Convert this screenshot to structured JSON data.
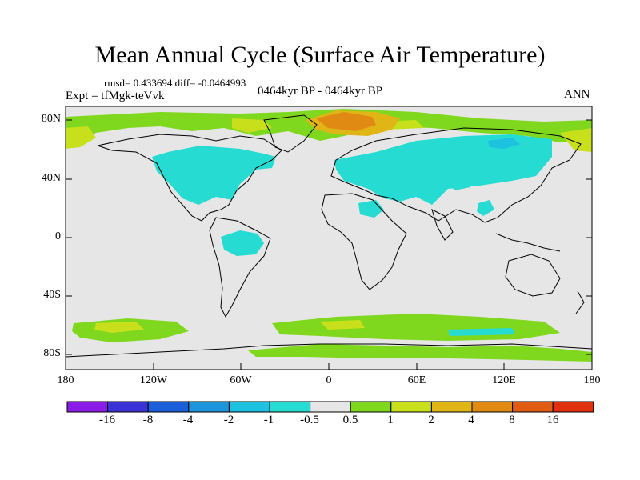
{
  "title": "Mean Annual Cycle (Surface Air Temperature)",
  "stats": "rmsd= 0.433694 diff= -0.0464993",
  "experiment": "Expt = tfMgk-teVvk",
  "period": "0464kyr BP - 0464kyr BP",
  "season": "ANN",
  "lat_ticks": [
    "80N",
    "40N",
    "0",
    "40S",
    "80S"
  ],
  "lon_ticks": [
    "180",
    "120W",
    "60W",
    "0",
    "60E",
    "120E",
    "180"
  ],
  "colorbar": {
    "labels": [
      "-16",
      "-8",
      "-4",
      "-2",
      "-1",
      "-0.5",
      "0.5",
      "1",
      "2",
      "4",
      "8",
      "16"
    ],
    "colors": [
      "#8a1ce8",
      "#3b32d6",
      "#1a5fd8",
      "#1e94dc",
      "#1cc2e0",
      "#26dcd2",
      "#e6e6e6",
      "#7fd81e",
      "#c8e01c",
      "#e0b616",
      "#e08a14",
      "#e05c12",
      "#e0300e"
    ]
  },
  "colors": {
    "map_background": "#e6e6e6",
    "warm_small": "#7fd81e",
    "warm_1": "#c8e01c",
    "warm_2": "#e0b616",
    "warm_4": "#e08a14",
    "cool_small": "#26dcd2"
  }
}
